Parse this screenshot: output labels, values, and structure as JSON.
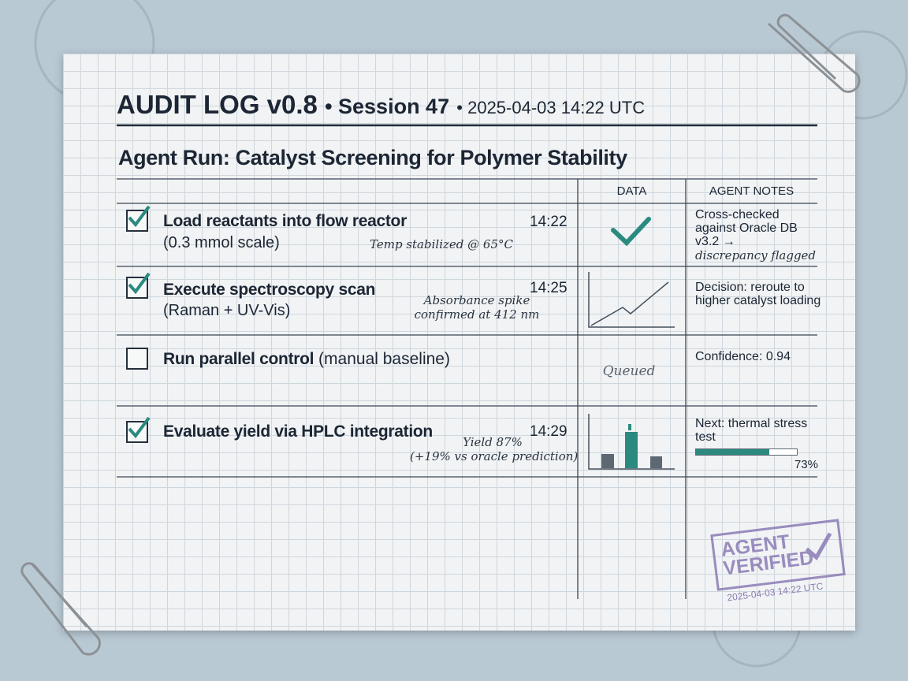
{
  "header": {
    "title": "AUDIT LOG v0.8",
    "session": "• Session 47",
    "timestamp": "• 2025-04-03 14:22 UTC"
  },
  "subtitle": "Agent Run: Catalyst Screening for Polymer Stability",
  "table": {
    "columns": [
      "DATA",
      "AGENT NOTES"
    ],
    "rows": [
      {
        "checked": true,
        "task": "Load reactants into flow reactor",
        "detail": "(0.3 mmol scale)",
        "time": "14:22",
        "annotation": [
          "Temp stabilized @ 65°C"
        ],
        "notes": "Cross-checked against Oracle DB v3.2 →",
        "note_hand": "discrepancy flagged"
      },
      {
        "checked": true,
        "task": "Execute spectroscopy scan",
        "detail": "(Raman + UV-Vis)",
        "time": "14:25",
        "annotation": [
          "Absorbance spike",
          "confirmed at 412 nm"
        ],
        "notes": "Decision: reroute to higher catalyst loading"
      },
      {
        "checked": false,
        "task": "Run parallel control",
        "detail": "(manual baseline)",
        "data_text": "Queued",
        "notes": "Confidence: 0.94"
      },
      {
        "checked": true,
        "task": "Evaluate yield via HPLC integration",
        "time": "14:29",
        "annotation": [
          "Yield 87%",
          "(+19% vs oracle prediction)"
        ],
        "notes": "Next: thermal stress test",
        "progress": {
          "value": 73,
          "label": "73%"
        }
      }
    ]
  },
  "stamp": {
    "text": "AGENT VERIFIED",
    "date": "2025-04-03 14:22 UTC"
  }
}
